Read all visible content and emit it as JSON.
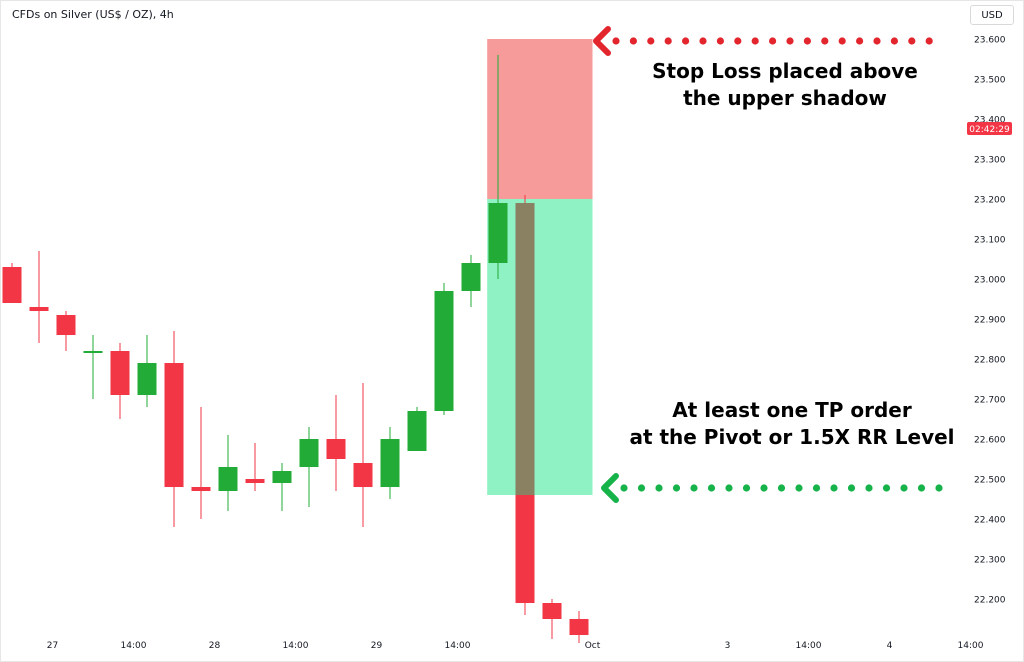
{
  "chart_title": "CFDs on Silver (US$ / OZ), 4h",
  "currency_label": "USD",
  "countdown_label": "02:42:29",
  "colors": {
    "up": "#22ab36",
    "down": "#f23645",
    "stop_zone": "#f79a9a",
    "target_zone": "#8ff2c4",
    "overlap": "#8a8062",
    "countdown_bg": "#f23645",
    "arrow_top": "#e3262e",
    "arrow_bottom": "#16b24a"
  },
  "annotations": {
    "stop_loss": {
      "line1": "Stop Loss placed above",
      "line2": "the upper shadow"
    },
    "take_profit": {
      "line1": "At least one TP order",
      "line2": "at the Pivot or 1.5X RR Level"
    }
  },
  "chart_data": {
    "type": "candlestick",
    "title": "CFDs on Silver (US$ / OZ), 4h",
    "xlabel": "",
    "ylabel": "USD",
    "ylim": [
      22.08,
      23.68
    ],
    "y_ticks": [
      "23.600",
      "23.500",
      "23.400",
      "23.300",
      "23.200",
      "23.100",
      "23.000",
      "22.900",
      "22.800",
      "22.700",
      "22.600",
      "22.500",
      "22.400",
      "22.300",
      "22.200"
    ],
    "x_tick_labels": [
      {
        "label": "27",
        "index": 1.5
      },
      {
        "label": "14:00",
        "index": 4.5
      },
      {
        "label": "28",
        "index": 7.5
      },
      {
        "label": "14:00",
        "index": 10.5
      },
      {
        "label": "29",
        "index": 13.5
      },
      {
        "label": "14:00",
        "index": 16.5
      },
      {
        "label": "Oct",
        "index": 21.5
      },
      {
        "label": "3",
        "index": 26.5
      },
      {
        "label": "14:00",
        "index": 29.5
      },
      {
        "label": "4",
        "index": 32.5
      },
      {
        "label": "14:00",
        "index": 35.5
      }
    ],
    "candles": [
      {
        "open": 23.03,
        "high": 23.04,
        "low": 22.94,
        "close": 22.94
      },
      {
        "open": 22.93,
        "high": 23.07,
        "low": 22.84,
        "close": 22.92
      },
      {
        "open": 22.91,
        "high": 22.92,
        "low": 22.82,
        "close": 22.86
      },
      {
        "open": 22.82,
        "high": 22.86,
        "low": 22.7,
        "close": 22.82
      },
      {
        "open": 22.82,
        "high": 22.84,
        "low": 22.65,
        "close": 22.71
      },
      {
        "open": 22.71,
        "high": 22.86,
        "low": 22.68,
        "close": 22.79
      },
      {
        "open": 22.79,
        "high": 22.87,
        "low": 22.38,
        "close": 22.48
      },
      {
        "open": 22.48,
        "high": 22.68,
        "low": 22.4,
        "close": 22.47
      },
      {
        "open": 22.47,
        "high": 22.61,
        "low": 22.42,
        "close": 22.53
      },
      {
        "open": 22.5,
        "high": 22.59,
        "low": 22.47,
        "close": 22.49
      },
      {
        "open": 22.49,
        "high": 22.54,
        "low": 22.42,
        "close": 22.52
      },
      {
        "open": 22.53,
        "high": 22.63,
        "low": 22.43,
        "close": 22.6
      },
      {
        "open": 22.6,
        "high": 22.71,
        "low": 22.47,
        "close": 22.55
      },
      {
        "open": 22.54,
        "high": 22.74,
        "low": 22.38,
        "close": 22.48
      },
      {
        "open": 22.48,
        "high": 22.63,
        "low": 22.45,
        "close": 22.6
      },
      {
        "open": 22.57,
        "high": 22.68,
        "low": 22.57,
        "close": 22.67
      },
      {
        "open": 22.67,
        "high": 22.99,
        "low": 22.66,
        "close": 22.97
      },
      {
        "open": 22.97,
        "high": 23.06,
        "low": 22.93,
        "close": 23.04
      },
      {
        "open": 23.04,
        "high": 23.56,
        "low": 23.0,
        "close": 23.19
      },
      {
        "open": 23.19,
        "high": 23.21,
        "low": 22.16,
        "close": 22.19
      },
      {
        "open": 22.19,
        "high": 22.2,
        "low": 22.1,
        "close": 22.15
      },
      {
        "open": 22.15,
        "high": 22.17,
        "low": 22.09,
        "close": 22.11
      }
    ],
    "position": {
      "entry": 23.2,
      "stop_loss": 23.6,
      "take_profit": 22.46,
      "start_index": 17.6,
      "end_index": 21.5
    }
  }
}
